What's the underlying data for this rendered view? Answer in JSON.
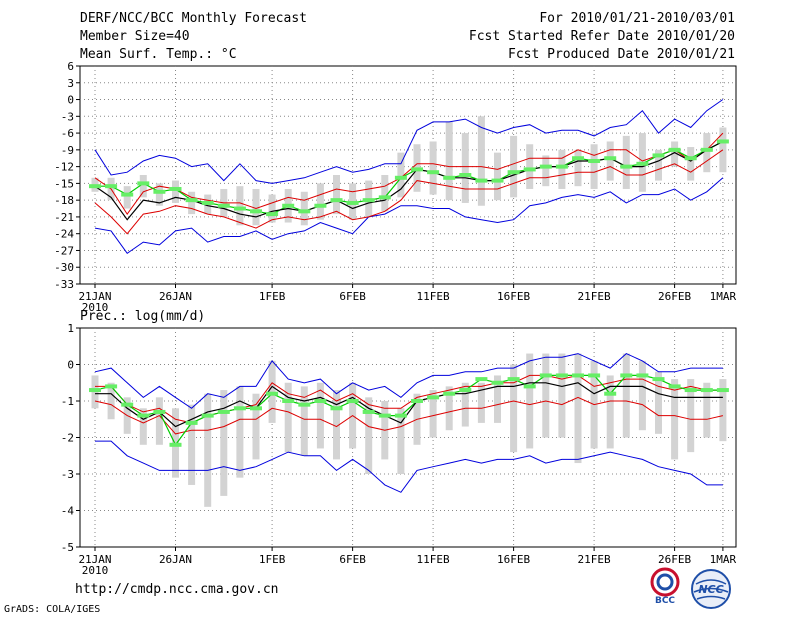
{
  "header": {
    "title": "DERF/NCC/BCC Monthly Forecast",
    "member_size": "Member Size=40",
    "variable": "Mean Surf. Temp.: °C",
    "period": "For 2010/01/21-2010/03/01",
    "fcst_started": "Fcst Started Refer Date 2010/01/20",
    "fcst_produced": "Fcst Produced Date 2010/01/21"
  },
  "footer": {
    "url": "http://cmdp.ncc.cma.gov.cn",
    "credit": "GrADS: COLA/IGES",
    "logo_bcc": "BCC",
    "logo_ncc": "NCC"
  },
  "colors": {
    "envelope": "#0000dd",
    "spread": "#dd0000",
    "mean": "#000000",
    "median": "#00cc00",
    "box": "#d3d3d3",
    "median_marker": "#66ee66"
  },
  "chart_data": [
    {
      "type": "line",
      "title": "Mean Surf. Temp.: °C",
      "x_tick_labels": [
        "21JAN",
        "26JAN",
        "1FEB",
        "6FEB",
        "11FEB",
        "16FEB",
        "21FEB",
        "26FEB",
        "1MAR"
      ],
      "x_tick_day_index": [
        0,
        5,
        11,
        16,
        21,
        26,
        31,
        36,
        39
      ],
      "year_label": "2010",
      "ylim": [
        -33,
        6
      ],
      "y_ticks": [
        6,
        3,
        0,
        -3,
        -6,
        -9,
        -12,
        -15,
        -18,
        -21,
        -24,
        -27,
        -30,
        -33
      ],
      "series": [
        {
          "name": "max",
          "values": [
            -9,
            -13.5,
            -13,
            -11,
            -10,
            -10.5,
            -12,
            -11.5,
            -14.5,
            -11.5,
            -14.5,
            -15,
            -14.5,
            -14,
            -13,
            -12,
            -13,
            -12.5,
            -11.5,
            -11.5,
            -5.5,
            -4,
            -4,
            -3.5,
            -5,
            -6,
            -5,
            -4.5,
            -6,
            -5.5,
            -5.5,
            -6.5,
            -5,
            -4.5,
            -2,
            -6,
            -3.5,
            -5,
            -2,
            0
          ]
        },
        {
          "name": "upper",
          "values": [
            -14,
            -16,
            -20.5,
            -16.5,
            -15.5,
            -16,
            -17.5,
            -18,
            -18.5,
            -18.5,
            -19.5,
            -18.5,
            -17.5,
            -18,
            -17,
            -16,
            -16.5,
            -16,
            -15.5,
            -14,
            -11.5,
            -11.5,
            -12,
            -12,
            -12,
            -12.5,
            -11.5,
            -10.5,
            -10.5,
            -10.5,
            -9,
            -10,
            -9,
            -9,
            -11,
            -10,
            -9,
            -11,
            -9,
            -6
          ]
        },
        {
          "name": "mean",
          "values": [
            -15.5,
            -17.5,
            -21.5,
            -18,
            -18.5,
            -17.5,
            -18,
            -19,
            -19.5,
            -20.5,
            -21,
            -20,
            -19.5,
            -20,
            -19,
            -18,
            -19.5,
            -18.5,
            -18,
            -16,
            -12.5,
            -13,
            -14,
            -14,
            -14.5,
            -14.5,
            -13.5,
            -12.5,
            -12,
            -12,
            -11,
            -11,
            -10.5,
            -12,
            -12,
            -11,
            -9.5,
            -11,
            -9,
            -7.5
          ]
        },
        {
          "name": "lower",
          "values": [
            -18.5,
            -21,
            -24,
            -20.5,
            -20,
            -19,
            -19.5,
            -20.5,
            -21,
            -22,
            -23,
            -21.5,
            -21,
            -21.5,
            -21,
            -20,
            -21.5,
            -21,
            -20,
            -18,
            -14.5,
            -15,
            -15.5,
            -16,
            -16,
            -16,
            -15,
            -14,
            -14,
            -13.5,
            -13,
            -13,
            -12,
            -13.5,
            -13.5,
            -12.5,
            -11.5,
            -13,
            -11,
            -9
          ]
        },
        {
          "name": "min",
          "values": [
            -23,
            -23.5,
            -27.5,
            -25.5,
            -26,
            -23.5,
            -23,
            -25.5,
            -24.5,
            -24.5,
            -23.5,
            -25,
            -24,
            -23.5,
            -22,
            -23,
            -24,
            -21,
            -20.5,
            -19,
            -19,
            -19.5,
            -19.5,
            -21,
            -21.5,
            -22,
            -21.5,
            -19,
            -18.5,
            -17.5,
            -17,
            -17.5,
            -16.5,
            -18.5,
            -17,
            -17,
            -16,
            -18,
            -16.5,
            -14
          ]
        },
        {
          "name": "median",
          "values": [
            -15.5,
            -15.5,
            -17,
            -15,
            -16.5,
            -16,
            -18,
            -18.5,
            -19,
            -19.5,
            -20,
            -20.5,
            -19,
            -20,
            -19,
            -18,
            -18.5,
            -18,
            -17.5,
            -14,
            -12.5,
            -13,
            -14,
            -13.5,
            -14.5,
            -14.5,
            -13,
            -12.5,
            -12,
            -12,
            -10.5,
            -11,
            -10.5,
            -12,
            -11.5,
            -10,
            -9,
            -10.5,
            -9,
            -7.5
          ]
        },
        {
          "name": "box_top",
          "values": [
            -14,
            -14,
            -15.5,
            -13.5,
            -15,
            -14.5,
            -16.5,
            -17,
            -16,
            -15.5,
            -16,
            -17,
            -16,
            -16.5,
            -15,
            -13.5,
            -15,
            -14.5,
            -13.5,
            -9.5,
            -8,
            -7.5,
            -4,
            -6,
            -3,
            -9.5,
            -6.5,
            -8,
            -10,
            -9,
            -9,
            -8,
            -7.5,
            -6.5,
            -6,
            -9,
            -7.5,
            -8.5,
            -6,
            -5
          ]
        },
        {
          "name": "box_bottom",
          "values": [
            -16.5,
            -18,
            -19.5,
            -17.5,
            -19,
            -18.5,
            -20.5,
            -20.5,
            -21,
            -22.5,
            -22.5,
            -22,
            -22,
            -22.5,
            -21.5,
            -20.5,
            -21.5,
            -21,
            -20,
            -17.5,
            -16.5,
            -17,
            -18,
            -18.5,
            -19,
            -18,
            -17.5,
            -16,
            -15.5,
            -16,
            -15.5,
            -16,
            -14.5,
            -16,
            -16.5,
            -14.5,
            -12,
            -14.5,
            -13,
            -13
          ]
        }
      ]
    },
    {
      "type": "line",
      "title": "Prec.: log(mm/d)",
      "x_tick_labels": [
        "21JAN",
        "26JAN",
        "1FEB",
        "6FEB",
        "11FEB",
        "16FEB",
        "21FEB",
        "26FEB",
        "1MAR"
      ],
      "x_tick_day_index": [
        0,
        5,
        11,
        16,
        21,
        26,
        31,
        36,
        39
      ],
      "year_label": "2010",
      "ylim": [
        -5,
        1
      ],
      "y_ticks": [
        1,
        0,
        -1,
        -2,
        -3,
        -4,
        -5
      ],
      "series": [
        {
          "name": "max",
          "values": [
            -0.2,
            -0.1,
            -0.5,
            -0.9,
            -0.6,
            -0.9,
            -1.2,
            -0.8,
            -0.9,
            -0.6,
            -0.6,
            0.1,
            -0.4,
            -0.5,
            -0.4,
            -0.8,
            -0.5,
            -0.7,
            -0.6,
            -0.9,
            -0.5,
            -0.3,
            -0.3,
            -0.2,
            -0.2,
            -0.1,
            -0.1,
            0.1,
            0.2,
            0.2,
            0.3,
            0.1,
            -0.1,
            0.3,
            0.1,
            -0.2,
            -0.2,
            -0.1,
            -0.1,
            -0.1
          ]
        },
        {
          "name": "upper",
          "values": [
            -0.6,
            -0.6,
            -1.1,
            -1.3,
            -1.2,
            -1.5,
            -1.6,
            -1.4,
            -1.3,
            -1.2,
            -1.1,
            -0.5,
            -0.8,
            -0.9,
            -0.7,
            -1.0,
            -0.8,
            -1.1,
            -1.2,
            -1.2,
            -0.9,
            -0.8,
            -0.7,
            -0.6,
            -0.6,
            -0.5,
            -0.5,
            -0.3,
            -0.3,
            -0.4,
            -0.3,
            -0.6,
            -0.5,
            -0.4,
            -0.4,
            -0.6,
            -0.7,
            -0.6,
            -0.7,
            -0.7
          ]
        },
        {
          "name": "mean",
          "values": [
            -0.8,
            -0.8,
            -1.2,
            -1.5,
            -1.3,
            -1.7,
            -1.5,
            -1.3,
            -1.2,
            -1.0,
            -1.2,
            -0.6,
            -0.9,
            -1.0,
            -0.9,
            -1.1,
            -0.9,
            -1.2,
            -1.4,
            -1.6,
            -1.0,
            -0.9,
            -0.8,
            -0.8,
            -0.7,
            -0.6,
            -0.6,
            -0.5,
            -0.5,
            -0.6,
            -0.5,
            -0.8,
            -0.6,
            -0.6,
            -0.6,
            -0.8,
            -0.9,
            -0.9,
            -0.9,
            -0.9
          ]
        },
        {
          "name": "lower",
          "values": [
            -1.0,
            -1.1,
            -1.4,
            -1.6,
            -1.4,
            -1.9,
            -1.8,
            -1.8,
            -1.7,
            -1.5,
            -1.5,
            -1.2,
            -1.3,
            -1.5,
            -1.5,
            -1.7,
            -1.4,
            -1.7,
            -1.8,
            -1.7,
            -1.5,
            -1.4,
            -1.3,
            -1.2,
            -1.2,
            -1.1,
            -1.0,
            -1.1,
            -1.0,
            -1.1,
            -0.9,
            -1.1,
            -1.0,
            -1.0,
            -1.1,
            -1.4,
            -1.4,
            -1.5,
            -1.5,
            -1.4
          ]
        },
        {
          "name": "min",
          "values": [
            -2.1,
            -2.1,
            -2.5,
            -2.7,
            -2.9,
            -2.9,
            -2.9,
            -2.9,
            -2.8,
            -2.9,
            -2.8,
            -2.6,
            -2.4,
            -2.5,
            -2.5,
            -2.9,
            -2.6,
            -2.9,
            -3.3,
            -3.5,
            -2.9,
            -2.8,
            -2.7,
            -2.6,
            -2.7,
            -2.6,
            -2.6,
            -2.5,
            -2.7,
            -2.6,
            -2.6,
            -2.5,
            -2.4,
            -2.5,
            -2.6,
            -2.8,
            -2.9,
            -3.0,
            -3.3,
            -3.3
          ]
        },
        {
          "name": "median",
          "values": [
            -0.7,
            -0.6,
            -1.1,
            -1.4,
            -1.3,
            -2.2,
            -1.6,
            -1.4,
            -1.3,
            -1.2,
            -1.2,
            -0.8,
            -1.0,
            -1.1,
            -1.0,
            -1.2,
            -1.0,
            -1.3,
            -1.4,
            -1.4,
            -1.0,
            -0.9,
            -0.8,
            -0.7,
            -0.4,
            -0.5,
            -0.4,
            -0.6,
            -0.3,
            -0.3,
            -0.3,
            -0.3,
            -0.8,
            -0.3,
            -0.3,
            -0.4,
            -0.6,
            -0.7,
            -0.7,
            -0.7
          ]
        },
        {
          "name": "box_top",
          "values": [
            -0.3,
            -0.5,
            -0.9,
            -1.2,
            -0.9,
            -1.2,
            -1.1,
            -0.8,
            -0.7,
            -0.6,
            -0.8,
            0.1,
            -0.5,
            -0.6,
            -0.5,
            -0.7,
            -0.5,
            -0.9,
            -1.0,
            -1.2,
            -0.8,
            -0.7,
            -0.6,
            -0.5,
            -0.5,
            -0.3,
            0.0,
            0.3,
            0.3,
            0.3,
            0.3,
            0.1,
            -0.3,
            0.3,
            0.1,
            -0.2,
            -0.4,
            -0.4,
            -0.5,
            -0.4
          ]
        },
        {
          "name": "box_bottom",
          "values": [
            -1.2,
            -1.5,
            -1.9,
            -2.2,
            -2.2,
            -3.1,
            -3.3,
            -3.9,
            -3.6,
            -3.1,
            -2.6,
            -1.6,
            -2.4,
            -2.5,
            -2.3,
            -2.6,
            -2.3,
            -3.0,
            -2.6,
            -3.0,
            -2.2,
            -2.0,
            -1.8,
            -1.7,
            -1.6,
            -1.6,
            -2.4,
            -2.3,
            -2.0,
            -2.0,
            -2.7,
            -2.3,
            -2.3,
            -2.0,
            -1.8,
            -1.9,
            -2.6,
            -2.4,
            -2.0,
            -2.1
          ]
        }
      ]
    }
  ]
}
